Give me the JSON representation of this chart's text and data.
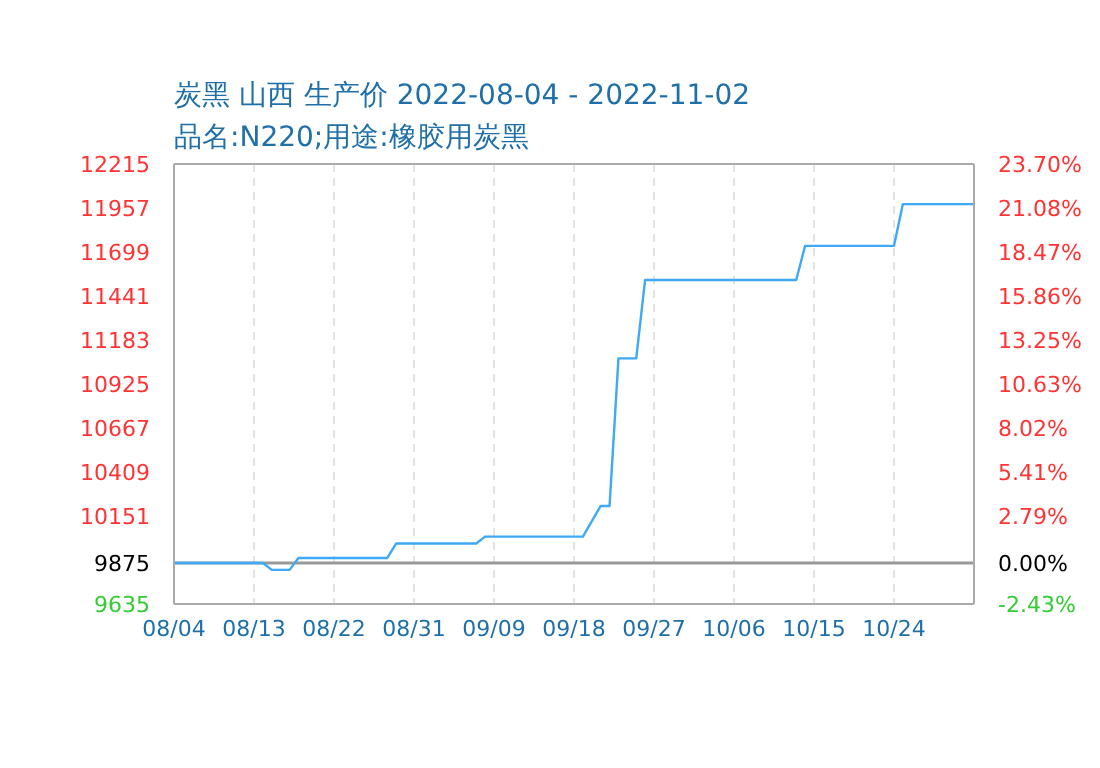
{
  "chart_data": {
    "type": "line",
    "title": "炭黑 山西 生产价 2022-08-04 - 2022-11-02",
    "subtitle": "品名:N220;用途:橡胶用炭黑",
    "x": [
      "2022-08-04",
      "2022-08-14",
      "2022-08-15",
      "2022-08-17",
      "2022-08-18",
      "2022-08-28",
      "2022-08-29",
      "2022-09-07",
      "2022-09-08",
      "2022-09-19",
      "2022-09-21",
      "2022-09-22",
      "2022-09-23",
      "2022-09-25",
      "2022-09-26",
      "2022-10-13",
      "2022-10-14",
      "2022-10-24",
      "2022-10-25",
      "2022-11-02"
    ],
    "series": [
      {
        "color": "#3fa9f5",
        "values": [
          9875,
          9875,
          9835,
          9835,
          9905,
          9905,
          9990,
          9990,
          10030,
          10030,
          10210,
          10210,
          11075,
          11075,
          11535,
          11535,
          11735,
          11735,
          11980,
          11980
        ]
      }
    ],
    "xlim": [
      "2022-08-04",
      "2022-11-02"
    ],
    "xticks": [
      {
        "value": "2022-08-04",
        "label": "08/04"
      },
      {
        "value": "2022-08-13",
        "label": "08/13"
      },
      {
        "value": "2022-08-22",
        "label": "08/22"
      },
      {
        "value": "2022-08-31",
        "label": "08/31"
      },
      {
        "value": "2022-09-09",
        "label": "09/09"
      },
      {
        "value": "2022-09-18",
        "label": "09/18"
      },
      {
        "value": "2022-09-27",
        "label": "09/27"
      },
      {
        "value": "2022-10-06",
        "label": "10/06"
      },
      {
        "value": "2022-10-15",
        "label": "10/15"
      },
      {
        "value": "2022-10-24",
        "label": "10/24"
      }
    ],
    "ylim": [
      9635,
      12215
    ],
    "yticks": [
      9635,
      9875,
      10151,
      10409,
      10667,
      10925,
      11183,
      11441,
      11699,
      11957,
      12215
    ],
    "y2lim": [
      -2.43,
      23.7
    ],
    "y2ticks": [
      {
        "value": -2.43,
        "label": "-2.43%"
      },
      {
        "value": 0,
        "label": "0.00%"
      },
      {
        "value": 2.79,
        "label": "2.79%"
      },
      {
        "value": 5.41,
        "label": "5.41%"
      },
      {
        "value": 8.02,
        "label": "8.02%"
      },
      {
        "value": 10.63,
        "label": "10.63%"
      },
      {
        "value": 13.25,
        "label": "13.25%"
      },
      {
        "value": 15.86,
        "label": "15.86%"
      },
      {
        "value": 18.47,
        "label": "18.47%"
      },
      {
        "value": 21.08,
        "label": "21.08%"
      },
      {
        "value": 23.7,
        "label": "23.70%"
      }
    ],
    "ref_lines": [
      {
        "axis": "y",
        "value": 9875,
        "color": "#999999"
      }
    ],
    "grid": true,
    "marker": "none",
    "line_style": "solid"
  }
}
